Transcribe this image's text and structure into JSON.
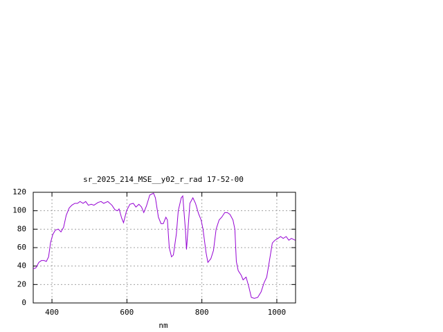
{
  "chart_data": {
    "type": "line",
    "title": "sr_2025_214_MSE__y02_r_rad 17-52-00",
    "xlabel": "nm",
    "x": [
      350,
      357,
      365,
      372,
      379,
      385,
      391,
      396,
      402,
      409,
      417,
      424,
      431,
      438,
      446,
      453,
      461,
      468,
      475,
      483,
      490,
      497,
      505,
      512,
      523,
      531,
      538,
      549,
      560,
      568,
      575,
      579,
      586,
      591,
      599,
      608,
      617,
      624,
      632,
      639,
      645,
      652,
      661,
      671,
      676,
      684,
      691,
      697,
      704,
      708,
      713,
      719,
      724,
      732,
      737,
      745,
      749,
      756,
      759,
      763,
      768,
      776,
      783,
      791,
      798,
      803,
      811,
      816,
      824,
      831,
      838,
      846,
      853,
      861,
      868,
      875,
      883,
      888,
      892,
      897,
      905,
      910,
      918,
      925,
      932,
      940,
      949,
      958,
      966,
      973,
      980,
      988,
      995,
      1003,
      1010,
      1017,
      1025,
      1032,
      1039,
      1049
    ],
    "series": [
      {
        "color": "#9400d3",
        "values": [
          37,
          38,
          44,
          46,
          46,
          45,
          50,
          65,
          74,
          79,
          80,
          77,
          82,
          95,
          103,
          106,
          108,
          108,
          110,
          108,
          110,
          106,
          107,
          106,
          109,
          110,
          108,
          110,
          106,
          101,
          100,
          102,
          92,
          87,
          100,
          107,
          108,
          104,
          107,
          104,
          98,
          105,
          117,
          119,
          114,
          93,
          86,
          86,
          93,
          90,
          60,
          50,
          52,
          75,
          100,
          114,
          116,
          80,
          58,
          80,
          108,
          114,
          108,
          97,
          90,
          80,
          55,
          44,
          48,
          57,
          80,
          90,
          93,
          98,
          98,
          96,
          90,
          80,
          45,
          35,
          30,
          25,
          28,
          18,
          6,
          5,
          6,
          12,
          22,
          28,
          45,
          65,
          68,
          70,
          72,
          70,
          72,
          68,
          70,
          68
        ]
      }
    ],
    "xlim": [
      350,
      1050
    ],
    "xticks": [
      400,
      600,
      800,
      1000
    ],
    "ylim": [
      0,
      120
    ],
    "yticks": [
      0,
      20,
      40,
      60,
      80,
      100,
      120
    ],
    "grid": true
  }
}
